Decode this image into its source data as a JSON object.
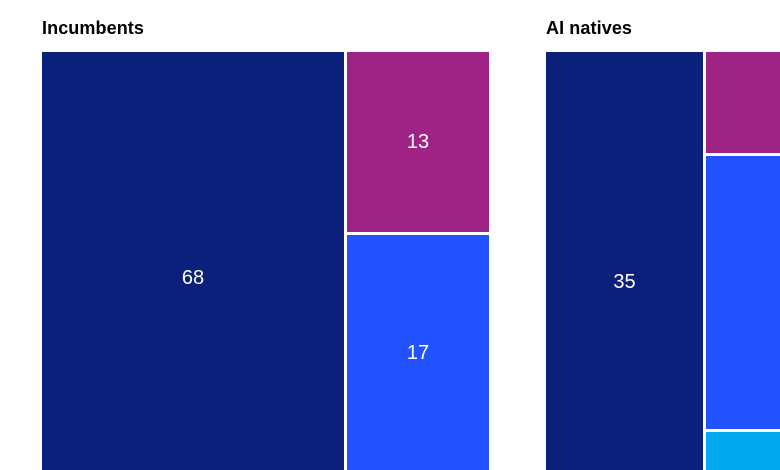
{
  "chart_data": {
    "type": "treemap",
    "title": "",
    "legend": "none",
    "grid": false,
    "label_color": "#ffffff",
    "title_color": "#000000",
    "background": "#ffffff",
    "panels": [
      {
        "title": "Incumbents",
        "segments": [
          {
            "name": "incumbents-navy",
            "label": "68",
            "value": 68,
            "color": "#0A207A"
          },
          {
            "name": "incumbents-magenta",
            "label": "13",
            "value": 13,
            "color": "#9E2384"
          },
          {
            "name": "incumbents-blue",
            "label": "17",
            "value": 17,
            "color": "#2251FF"
          }
        ]
      },
      {
        "title": "AI natives",
        "segments": [
          {
            "name": "ai-natives-navy",
            "label": "35",
            "value": 35,
            "color": "#0A207A"
          },
          {
            "name": "ai-natives-magenta",
            "label": "",
            "value": null,
            "color": "#9E2384"
          },
          {
            "name": "ai-natives-blue",
            "label": "",
            "value": null,
            "color": "#2251FF"
          },
          {
            "name": "ai-natives-cyan",
            "label": "",
            "value": null,
            "color": "#00A9F0"
          }
        ]
      }
    ],
    "notes": "Right panel and bottom of both panels are cropped by the image edge; only the value 35 is visible in the AI natives panel."
  }
}
